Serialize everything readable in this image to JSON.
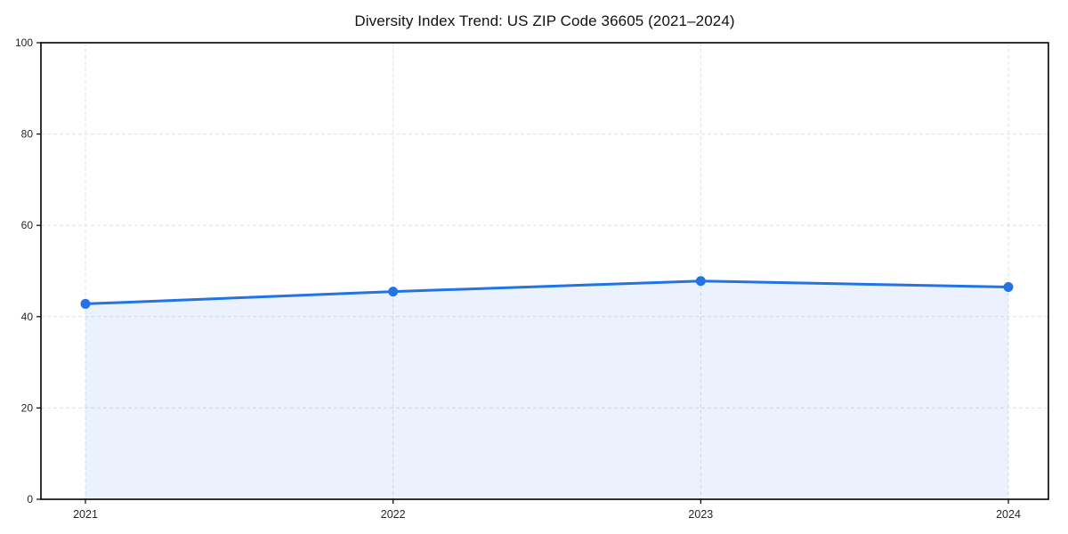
{
  "chart_data": {
    "type": "area",
    "title": "Diversity Index Trend: US ZIP Code 36605 (2021–2024)",
    "categories": [
      "2021",
      "2022",
      "2023",
      "2024"
    ],
    "series": [
      {
        "name": "Diversity Index",
        "values": [
          42.8,
          45.5,
          47.8,
          46.5
        ]
      }
    ],
    "xlabel": "",
    "ylabel": "",
    "ylim": [
      0,
      100
    ],
    "yticks": [
      0,
      20,
      40,
      60,
      80,
      100
    ],
    "grid": true,
    "grid_style": "dashed",
    "legend_position": "none",
    "colors": {
      "line": "#2173e6",
      "fill_opacity": 0.09,
      "grid": "#e0e0e0",
      "axis": "#000000",
      "text": "#262626",
      "background": "#ffffff"
    }
  }
}
